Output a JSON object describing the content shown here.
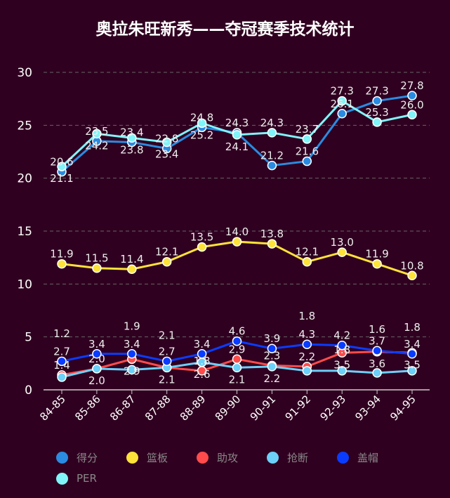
{
  "chart_data": {
    "type": "line",
    "title": "奥拉朱旺新秀——夺冠赛季技术统计",
    "categories": [
      "84-85",
      "85-86",
      "86-87",
      "87-88",
      "88-89",
      "89-90",
      "90-91",
      "91-92",
      "92-93",
      "93-94",
      "94-95"
    ],
    "ylim": [
      0,
      30
    ],
    "yticks": [
      0,
      5,
      10,
      15,
      20,
      25,
      30
    ],
    "grid": true,
    "legend_position": "bottom",
    "series": [
      {
        "name": "得分",
        "color": "#2a8be0",
        "values": [
          20.6,
          23.5,
          23.4,
          22.8,
          24.8,
          24.3,
          21.2,
          21.6,
          26.1,
          27.3,
          27.8
        ]
      },
      {
        "name": "篮板",
        "color": "#fde23a",
        "values": [
          11.9,
          11.5,
          11.4,
          12.1,
          13.5,
          14.0,
          13.8,
          12.1,
          13.0,
          11.9,
          10.8
        ]
      },
      {
        "name": "助攻",
        "color": "#ff4b4b",
        "values": [
          1.4,
          2.0,
          2.9,
          2.1,
          1.8,
          2.9,
          2.3,
          2.2,
          3.5,
          3.6,
          3.5
        ]
      },
      {
        "name": "抢断",
        "color": "#6cd0f8",
        "values": [
          1.2,
          2.0,
          1.9,
          2.1,
          2.6,
          2.1,
          2.2,
          1.8,
          1.8,
          1.6,
          1.8
        ]
      },
      {
        "name": "盖帽",
        "color": "#0a3cff",
        "values": [
          2.7,
          3.4,
          3.4,
          2.7,
          3.4,
          4.6,
          3.9,
          4.3,
          4.2,
          3.7,
          3.4
        ]
      },
      {
        "name": "PER",
        "color": "#80f4f8",
        "values": [
          21.1,
          24.2,
          23.8,
          23.4,
          25.2,
          24.1,
          24.3,
          23.7,
          27.3,
          25.3,
          26.0
        ]
      }
    ]
  }
}
